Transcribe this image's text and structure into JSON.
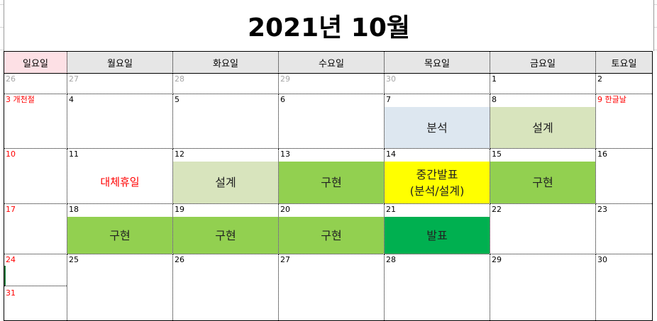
{
  "title": "2021년 10월",
  "weekdays": [
    "일요일",
    "월요일",
    "화요일",
    "수요일",
    "목요일",
    "금요일",
    "토요일"
  ],
  "days": {
    "r1": [
      "26",
      "27",
      "28",
      "29",
      "30",
      "1",
      "2"
    ],
    "r2": [
      "3 개천절",
      "4",
      "5",
      "6",
      "7",
      "8",
      "9 한글날"
    ],
    "r3": [
      "10",
      "11",
      "12",
      "13",
      "14",
      "15",
      "16"
    ],
    "r4": [
      "17",
      "18",
      "19",
      "20",
      "21",
      "22",
      "23"
    ],
    "r5": [
      "24",
      "25",
      "26",
      "27",
      "28",
      "29",
      "30"
    ],
    "r5_extra": "31"
  },
  "events": {
    "oct7": "분석",
    "oct8": "설계",
    "oct11": "대체휴일",
    "oct12": "설계",
    "oct13": "구현",
    "oct14_line1": "중간발표",
    "oct14_line2": "(분석/설계)",
    "oct15": "구현",
    "oct18": "구현",
    "oct19": "구현",
    "oct20": "구현",
    "oct21": "발표"
  },
  "colors": {
    "sunday_header": "#fde0e5",
    "header": "#e6e6e6",
    "analysis": "#dde7f0",
    "design": "#d8e4bd",
    "implement": "#92d050",
    "midterm": "#ffff00",
    "presentation": "#00b050",
    "holiday_text": "#ff0000"
  }
}
